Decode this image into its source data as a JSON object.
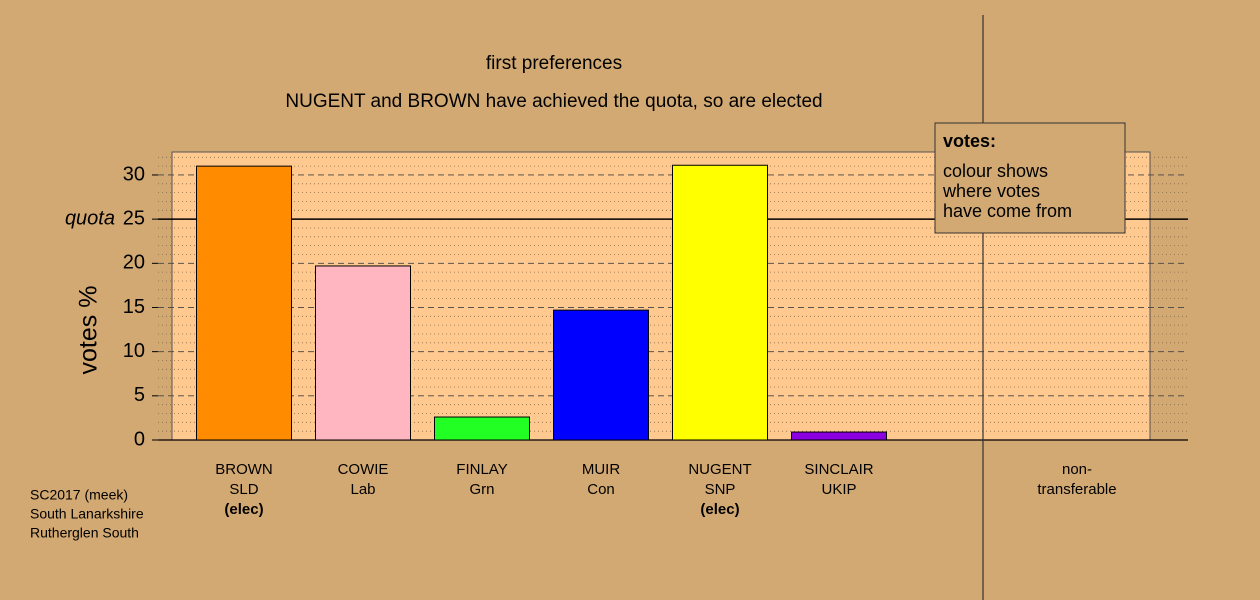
{
  "chart_data": {
    "type": "bar",
    "title": "first preferences",
    "subtitle": "NUGENT and BROWN have achieved the quota, so are elected",
    "y_label": "votes %",
    "categories": [
      [
        "BROWN",
        "SLD",
        "(elec)"
      ],
      [
        "COWIE",
        "Lab"
      ],
      [
        "FINLAY",
        "Grn"
      ],
      [
        "MUIR",
        "Con"
      ],
      [
        "NUGENT",
        "SNP",
        "(elec)"
      ],
      [
        "SINCLAIR",
        "UKIP"
      ],
      null,
      [
        "non-",
        "transferable"
      ]
    ],
    "values": [
      31.0,
      19.7,
      2.6,
      14.7,
      31.1,
      0.9,
      null,
      0
    ],
    "colors": [
      "#ff8c00",
      "#ffb6c1",
      "#22ff22",
      "#0000ff",
      "#ffff00",
      "#8a00e0",
      null,
      "#ffffff"
    ],
    "ylim": [
      0,
      32.6
    ],
    "yticks": [
      0,
      5,
      10,
      15,
      20,
      25,
      30
    ],
    "minor_yticks": [
      1,
      2,
      3,
      4,
      6,
      7,
      8,
      9,
      11,
      12,
      13,
      14,
      16,
      17,
      18,
      19,
      21,
      22,
      23,
      24,
      26,
      27,
      28,
      29,
      31,
      32
    ],
    "grid": true,
    "quota": {
      "value": 25,
      "label": "quota"
    },
    "legend": {
      "title": "votes:",
      "lines": [
        "colour shows",
        "where votes",
        "have come from"
      ]
    },
    "footnote": [
      "SC2017 (meek)",
      "South Lanarkshire",
      "Rutherglen South"
    ]
  }
}
